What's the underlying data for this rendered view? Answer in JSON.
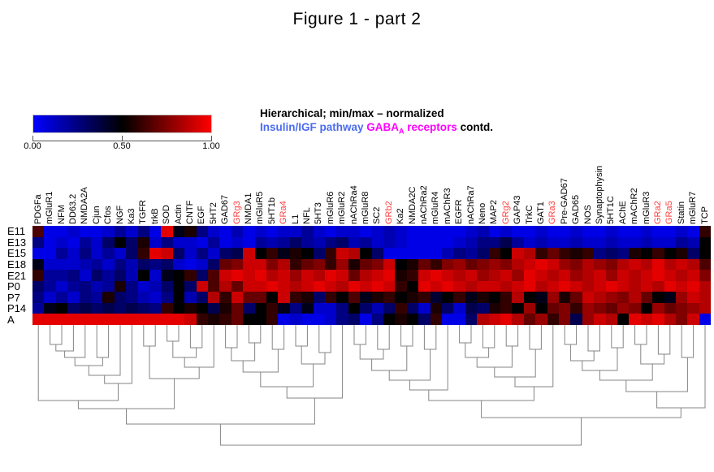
{
  "figure": {
    "title": "Figure 1 - part 2"
  },
  "legend": {
    "line1": "Hierarchical; min/max – normalized",
    "pathway_label": "Insulin/IGF pathway",
    "gaba_main": "GABA",
    "gaba_sub": "A",
    "gaba_rest": " receptors",
    "contd": " contd.",
    "pathway_color": "#4a6cf0",
    "gaba_color": "#ff00ff",
    "text_color": "#000000"
  },
  "colorbar": {
    "tick_labels": [
      "0.00",
      "0.50",
      "1.00"
    ],
    "left_color": "#0000ff",
    "mid_color": "#000000",
    "right_color": "#ff0000"
  },
  "chart_data": {
    "type": "heatmap",
    "title": "Figure 1 - part 2",
    "colormap": "blue-black-red (0 = blue, 0.5 = black, 1 = red)",
    "value_range": [
      0,
      1
    ],
    "rows": [
      "E11",
      "E13",
      "E15",
      "E18",
      "E21",
      "P0",
      "P7",
      "P14",
      "A"
    ],
    "columns": [
      "PDGFa",
      "mGluR1",
      "NFM",
      "DD63.2",
      "NMDA2A",
      "Cjun",
      "Cfos",
      "NGF",
      "Ka3",
      "TGFR",
      "trkB",
      "SOD",
      "Actin",
      "CNTF",
      "EGF",
      "5HT2",
      "GAD67",
      "GRg3",
      "NMDA1",
      "mGluR5",
      "5HT1b",
      "GRa4",
      "L1",
      "NFL",
      "5HT3",
      "mGluR6",
      "mGluR2",
      "nAChRa4",
      "mGluR8",
      "SC2",
      "GRb2",
      "Ka2",
      "NMDA2C",
      "nAChRa2",
      "mGluR4",
      "mAChR3",
      "EGFR",
      "nAChRa7",
      "Neno",
      "MAP2",
      "GRg2",
      "GAP43",
      "TrkC",
      "GAT1",
      "GRa3",
      "Pre-GAD67",
      "GAD65",
      "NOS",
      "Synaptophysin",
      "5HT1C",
      "AChE",
      "mAChR2",
      "mGluR3",
      "GRa2",
      "GRa5",
      "Statin",
      "mGluR7",
      "TCP"
    ],
    "highlighted_columns": [
      "GRg3",
      "GRa4",
      "GRb2",
      "GRg2",
      "GRa3",
      "GRa2",
      "GRa5"
    ],
    "highlight_color": "#ff4040",
    "values": [
      [
        0.65,
        0.05,
        0.05,
        0.1,
        0.05,
        0.05,
        0.1,
        0.2,
        0.1,
        0.25,
        0.05,
        0.95,
        0.45,
        0.55,
        0.25,
        0.1,
        0.05,
        0.15,
        0.05,
        0.1,
        0.05,
        0.1,
        0.1,
        0.2,
        0.1,
        0.05,
        0.1,
        0.1,
        0.05,
        0.1,
        0.15,
        0.1,
        0.05,
        0.05,
        0.05,
        0.05,
        0.05,
        0.1,
        0.15,
        0.05,
        0.1,
        0.05,
        0.05,
        0.1,
        0.05,
        0.05,
        0.1,
        0.05,
        0.05,
        0.1,
        0.05,
        0.05,
        0.1,
        0.05,
        0.05,
        0.1,
        0.05,
        0.6
      ],
      [
        0.25,
        0.05,
        0.1,
        0.05,
        0.2,
        0.1,
        0.3,
        0.5,
        0.3,
        0.55,
        0.1,
        0.25,
        0.1,
        0.1,
        0.05,
        0.2,
        0.05,
        0.1,
        0.05,
        0.2,
        0.15,
        0.2,
        0.3,
        0.2,
        0.15,
        0.25,
        0.3,
        0.15,
        0.2,
        0.1,
        0.15,
        0.1,
        0.05,
        0.05,
        0.05,
        0.05,
        0.1,
        0.15,
        0.25,
        0.25,
        0.35,
        0.2,
        0.1,
        0.15,
        0.1,
        0.1,
        0.15,
        0.1,
        0.1,
        0.15,
        0.1,
        0.1,
        0.15,
        0.1,
        0.1,
        0.2,
        0.15,
        0.5
      ],
      [
        0.05,
        0.05,
        0.2,
        0.1,
        0.25,
        0.1,
        0.2,
        0.1,
        0.3,
        0.6,
        0.95,
        0.9,
        0.3,
        0.1,
        0.25,
        0.1,
        0.3,
        0.35,
        0.9,
        0.5,
        0.6,
        0.45,
        0.55,
        0.5,
        0.3,
        0.6,
        0.9,
        0.85,
        0.5,
        0.3,
        0.05,
        0.05,
        0.05,
        0.05,
        0.05,
        0.15,
        0.25,
        0.2,
        0.3,
        0.6,
        0.5,
        0.9,
        0.85,
        0.6,
        0.7,
        0.6,
        0.55,
        0.6,
        0.25,
        0.3,
        0.25,
        0.55,
        0.5,
        0.6,
        0.5,
        0.55,
        0.3,
        0.5
      ],
      [
        0.45,
        0.1,
        0.1,
        0.1,
        0.15,
        0.2,
        0.1,
        0.25,
        0.15,
        0.3,
        0.25,
        0.3,
        0.1,
        0.05,
        0.1,
        0.3,
        0.7,
        0.75,
        0.9,
        0.9,
        0.75,
        0.85,
        0.6,
        0.7,
        0.75,
        0.6,
        0.8,
        0.55,
        0.7,
        0.75,
        0.9,
        0.5,
        0.55,
        0.7,
        0.6,
        0.75,
        0.8,
        0.7,
        0.75,
        0.8,
        0.75,
        0.85,
        0.9,
        0.95,
        0.9,
        0.8,
        0.75,
        0.85,
        0.8,
        0.75,
        0.85,
        0.9,
        0.85,
        0.95,
        0.85,
        0.9,
        0.85,
        0.65
      ],
      [
        0.6,
        0.2,
        0.2,
        0.25,
        0.1,
        0.3,
        0.2,
        0.3,
        0.15,
        0.5,
        0.1,
        0.45,
        0.5,
        0.6,
        0.3,
        0.65,
        0.9,
        0.95,
        0.9,
        0.95,
        0.85,
        0.9,
        0.8,
        0.9,
        0.85,
        0.95,
        0.9,
        0.7,
        0.85,
        0.9,
        0.95,
        0.55,
        0.6,
        0.9,
        0.95,
        0.9,
        0.85,
        0.9,
        0.8,
        0.85,
        0.9,
        0.8,
        0.95,
        0.9,
        0.85,
        0.9,
        0.8,
        0.85,
        0.9,
        0.8,
        0.9,
        0.85,
        0.9,
        0.95,
        0.9,
        0.85,
        0.9,
        0.75
      ],
      [
        0.3,
        0.2,
        0.1,
        0.2,
        0.25,
        0.15,
        0.2,
        0.55,
        0.25,
        0.1,
        0.15,
        0.3,
        0.5,
        0.3,
        0.9,
        0.65,
        0.85,
        0.7,
        0.9,
        0.9,
        0.95,
        0.9,
        0.85,
        0.9,
        0.95,
        0.9,
        0.85,
        0.95,
        0.9,
        0.95,
        0.9,
        0.6,
        0.5,
        0.95,
        0.9,
        0.95,
        0.9,
        0.85,
        0.9,
        0.9,
        0.85,
        0.9,
        0.95,
        0.85,
        0.9,
        0.95,
        0.9,
        0.85,
        0.9,
        0.95,
        0.9,
        0.85,
        0.9,
        0.85,
        0.95,
        0.9,
        0.95,
        0.85
      ],
      [
        0.25,
        0.1,
        0.2,
        0.1,
        0.25,
        0.2,
        0.55,
        0.3,
        0.25,
        0.15,
        0.1,
        0.25,
        0.5,
        0.15,
        0.3,
        0.85,
        0.6,
        0.9,
        0.7,
        0.7,
        0.5,
        0.9,
        0.6,
        0.55,
        0.3,
        0.6,
        0.5,
        0.65,
        0.45,
        0.55,
        0.6,
        0.5,
        0.55,
        0.6,
        0.4,
        0.5,
        0.6,
        0.45,
        0.55,
        0.5,
        0.6,
        0.85,
        0.5,
        0.45,
        0.8,
        0.55,
        0.7,
        0.9,
        0.85,
        0.8,
        0.75,
        0.85,
        0.7,
        0.5,
        0.45,
        0.8,
        0.9,
        0.85
      ],
      [
        0.2,
        0.45,
        0.5,
        0.3,
        0.35,
        0.3,
        0.35,
        0.3,
        0.35,
        0.3,
        0.25,
        0.6,
        0.5,
        0.55,
        0.5,
        0.35,
        0.55,
        0.7,
        0.3,
        0.5,
        0.6,
        0.45,
        0.25,
        0.45,
        0.1,
        0.1,
        0.25,
        0.5,
        0.3,
        0.15,
        0.3,
        0.6,
        0.3,
        0.1,
        0.55,
        0.3,
        0.1,
        0.35,
        0.3,
        0.55,
        0.6,
        0.5,
        0.8,
        0.5,
        0.7,
        0.75,
        0.6,
        0.8,
        0.75,
        0.7,
        0.8,
        0.75,
        0.5,
        0.8,
        0.7,
        0.75,
        0.8,
        0.85
      ],
      [
        0.95,
        0.95,
        0.95,
        0.95,
        0.95,
        0.95,
        0.95,
        0.95,
        0.95,
        0.95,
        0.95,
        0.95,
        0.95,
        0.9,
        0.6,
        0.55,
        0.6,
        0.7,
        0.5,
        0.5,
        0.6,
        0.05,
        0.1,
        0.05,
        0.05,
        0.1,
        0.25,
        0.3,
        0.05,
        0.25,
        0.5,
        0.55,
        0.5,
        0.3,
        0.6,
        0.05,
        0.05,
        0.3,
        0.85,
        0.9,
        0.95,
        0.85,
        0.7,
        0.8,
        0.6,
        0.75,
        0.35,
        0.8,
        0.9,
        0.85,
        0.5,
        0.95,
        0.9,
        0.95,
        0.85,
        0.75,
        0.9,
        0.05
      ]
    ],
    "dendrogram": [
      148,
      [
        122,
        [
          103,
          [
            93,
            1,
            [
              72,
              [
                62,
                [
                  50,
                  [
                    40,
                    [
                      32,
                      [
                        24,
                        2,
                        3
                      ],
                      4
                    ],
                    5
                  ],
                  [
                    40,
                    6,
                    7
                  ]
                ],
                8
              ],
              9
            ]
          ],
          [
            66,
            [
              26,
              10,
              11
            ],
            [
              52,
              [
                40,
                [
                  20,
                  12,
                  13
                ],
                [
                  28,
                  14,
                  15
                ]
              ],
              16
            ]
          ]
        ],
        [
          90,
          [
            76,
            [
              58,
              [
                44,
                [
                  28,
                  17,
                  18
                ],
                [
                  22,
                  19,
                  20
                ]
              ],
              [
                30,
                21,
                22
              ]
            ],
            [
              48,
              [
                26,
                23,
                24
              ],
              [
                34,
                25,
                26
              ]
            ]
          ],
          27
        ]
      ],
      [
        114,
        [
          93,
          [
            80,
            [
              68,
              [
                56,
                [
                  42,
                  [
                    24,
                    28,
                    29
                  ],
                  [
                    30,
                    30,
                    31
                  ]
                ],
                [
                  26,
                  32,
                  33
                ]
              ],
              [
                30,
                34,
                35
              ]
            ],
            36
          ],
          [
            76,
            [
              64,
              [
                52,
                [
                  40,
                  [
                    22,
                    37,
                    38
                  ],
                  [
                    28,
                    39,
                    40
                  ]
                ],
                [
                  26,
                  41,
                  42
                ]
              ],
              [
                30,
                43,
                44
              ]
            ],
            45
          ]
        ],
        [
          102,
          [
            82,
            [
              68,
              [
                56,
                [
                  44,
                  [
                    24,
                    46,
                    47
                  ],
                  [
                    32,
                    48,
                    49
                  ]
                ],
                [
                  28,
                  50,
                  51
                ]
              ],
              [
                48,
                [
                  24,
                  52,
                  53
                ],
                [
                  36,
                  54,
                  55
                ]
              ]
            ],
            [
              40,
              56,
              57
            ]
          ],
          58
        ]
      ]
    ],
    "legend_position": "top",
    "grid": false
  }
}
